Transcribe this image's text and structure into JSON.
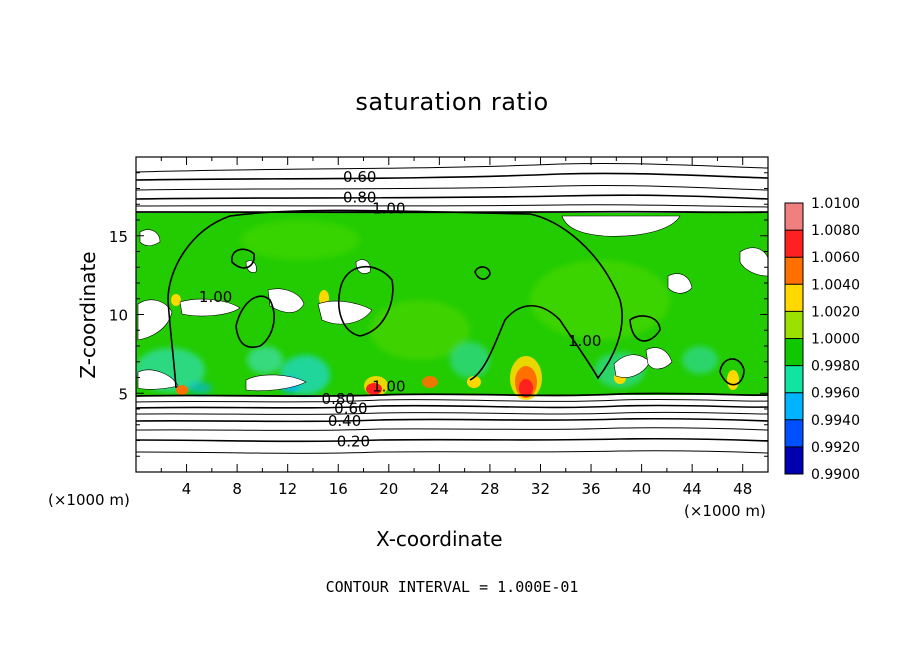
{
  "chart_data": {
    "type": "heatmap",
    "title": "saturation ratio",
    "xlabel": "X-coordinate",
    "ylabel": "Z-coordinate",
    "x_unit": "(×1000 m)",
    "footer": "CONTOUR INTERVAL = 1.000E-01",
    "xlim": [
      0,
      50
    ],
    "ylim": [
      0,
      20
    ],
    "x_ticks": [
      "4",
      "8",
      "12",
      "16",
      "20",
      "24",
      "28",
      "32",
      "36",
      "40",
      "44",
      "48"
    ],
    "y_ticks": [
      "5",
      "10",
      "15"
    ],
    "contour_labels": [
      {
        "text": "0.60",
        "x": 17.7,
        "z": 18.6
      },
      {
        "text": "0.80",
        "x": 17.7,
        "z": 17.3
      },
      {
        "text": "1.00",
        "x": 20.0,
        "z": 16.6
      },
      {
        "text": "1.00",
        "x": 6.3,
        "z": 11.0
      },
      {
        "text": "1.00",
        "x": 35.5,
        "z": 8.2
      },
      {
        "text": "1.00",
        "x": 20.0,
        "z": 5.3
      },
      {
        "text": "0.80",
        "x": 16.0,
        "z": 4.5
      },
      {
        "text": "0.60",
        "x": 17.0,
        "z": 3.9
      },
      {
        "text": "0.40",
        "x": 16.5,
        "z": 3.1
      },
      {
        "text": "0.20",
        "x": 17.2,
        "z": 1.8
      }
    ],
    "colorbar": {
      "labels": [
        "1.0100",
        "1.0080",
        "1.0060",
        "1.0040",
        "1.0020",
        "1.0000",
        "0.9980",
        "0.9960",
        "0.9940",
        "0.9920",
        "0.9900"
      ],
      "colors": [
        "#f08080",
        "#ff2020",
        "#ff7000",
        "#ffd800",
        "#9ce000",
        "#10c800",
        "#10e4a0",
        "#00b4ff",
        "#0050ff",
        "#0000b0",
        "#6000a0"
      ]
    }
  }
}
